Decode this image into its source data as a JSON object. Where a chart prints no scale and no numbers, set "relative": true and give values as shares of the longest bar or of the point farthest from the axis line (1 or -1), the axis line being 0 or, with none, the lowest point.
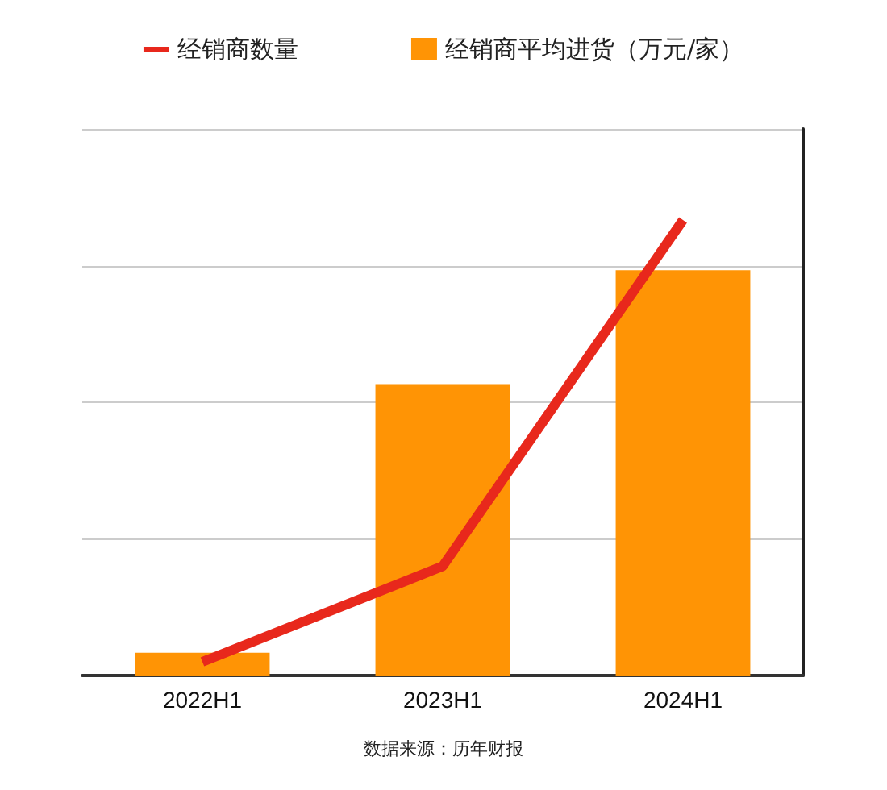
{
  "chart_data": {
    "type": "bar",
    "categories": [
      "2022H1",
      "2023H1",
      "2024H1"
    ],
    "relative": true,
    "grid": "y",
    "legend": "top",
    "series": [
      {
        "name": "经销商数量",
        "type": "line",
        "color": "#e8281c",
        "marker": "none",
        "values": [
          0.03,
          0.24,
          1
        ]
      },
      {
        "name": "经销商平均进货（万元/家）",
        "color": "#ff9405",
        "values": [
          0.05,
          0.64,
          0.89
        ]
      }
    ],
    "annotations": [
      "数据来源：历年财报"
    ]
  }
}
